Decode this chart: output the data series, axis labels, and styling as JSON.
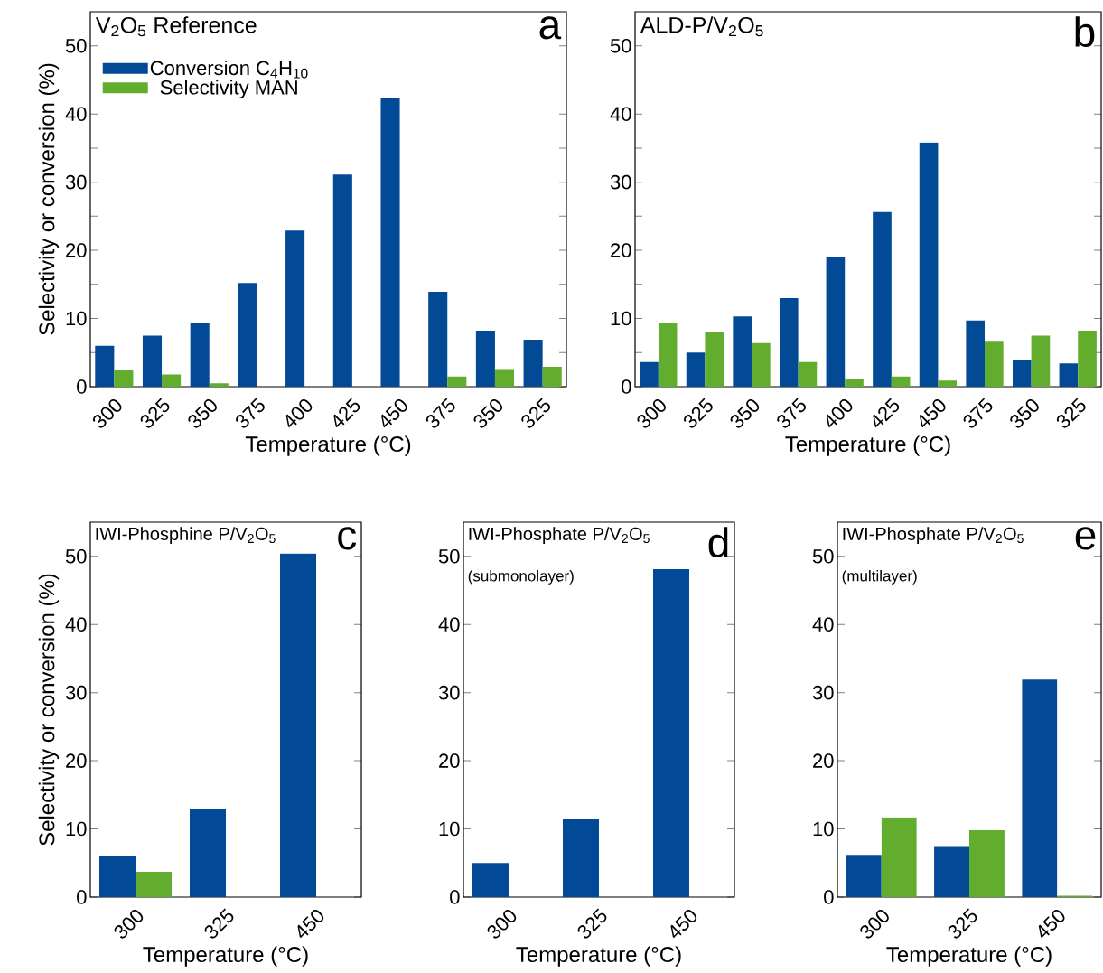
{
  "chart_data": [
    {
      "type": "bar",
      "title": "V$_{2}$O$_{5}$ Reference",
      "annotations": [
        "a"
      ],
      "categories": [
        "300",
        "325",
        "350",
        "375",
        "400",
        "425",
        "450",
        "375",
        "350",
        "325"
      ],
      "series": [
        {
          "name": "Conversion C$_{4}$H$_{10}$",
          "color": "#034a96",
          "values": [
            6.0,
            7.5,
            9.3,
            15.2,
            22.9,
            31.1,
            42.4,
            13.9,
            8.2,
            6.9
          ]
        },
        {
          "name": "Selectivity MAN",
          "color": "#62ad2e",
          "values": [
            2.5,
            1.8,
            0.5,
            null,
            null,
            null,
            null,
            1.5,
            2.6,
            2.9
          ]
        }
      ],
      "ylim": [
        0,
        55
      ],
      "yticks": [
        0,
        {
          "value": 5,
          "label": null
        },
        10,
        {
          "value": 15,
          "label": null
        },
        20,
        {
          "value": 25,
          "label": null
        },
        30,
        {
          "value": 35,
          "label": null
        },
        40,
        {
          "value": 45,
          "label": null
        },
        50
      ],
      "xlabel": "Temperature (°C)",
      "ylabel": "Selectivity or conversion (%)",
      "legend": "top left"
    },
    {
      "type": "bar",
      "title": "ALD-P/V$_{2}$O$_{5}$",
      "annotations": [
        "b"
      ],
      "categories": [
        "300",
        "325",
        "350",
        "375",
        "400",
        "425",
        "450",
        "375",
        "350",
        "325"
      ],
      "series": [
        {
          "color": "#034a96",
          "values": [
            3.6,
            5.0,
            10.3,
            13.0,
            19.1,
            25.6,
            35.8,
            9.7,
            3.9,
            3.4
          ]
        },
        {
          "color": "#62ad2e",
          "values": [
            9.3,
            8.0,
            6.4,
            3.6,
            1.2,
            1.5,
            0.9,
            6.6,
            7.5,
            8.2
          ]
        }
      ],
      "ylim": [
        0,
        55
      ],
      "yticks": [
        0,
        {
          "value": 5,
          "label": null
        },
        10,
        {
          "value": 15,
          "label": null
        },
        20,
        {
          "value": 25,
          "label": null
        },
        30,
        {
          "value": 35,
          "label": null
        },
        40,
        {
          "value": 45,
          "label": null
        },
        50
      ],
      "xlabel": "Temperature (°C)"
    },
    {
      "type": "bar",
      "title": "IWI-Phosphine P/V$_{2}$O$_{5}$",
      "annotations": [
        "c"
      ],
      "categories": [
        "300",
        "325",
        "450"
      ],
      "series": [
        {
          "color": "#034a96",
          "values": [
            6.0,
            13.0,
            50.4
          ]
        },
        {
          "color": "#62ad2e",
          "values": [
            3.7,
            null,
            null
          ]
        }
      ],
      "ylim": [
        0,
        55
      ],
      "yticks": [
        0,
        10,
        20,
        30,
        40,
        50
      ],
      "xlabel": "Temperature (°C)",
      "ylabel": "Selectivity or conversion (%)"
    },
    {
      "type": "bar",
      "title": "IWI-Phosphate P/V$_{2}$O$_{5}$",
      "subtitle": "(submonolayer)",
      "annotations": [
        "d"
      ],
      "categories": [
        "300",
        "325",
        "450"
      ],
      "series": [
        {
          "color": "#034a96",
          "values": [
            5.0,
            11.4,
            48.1
          ]
        },
        {
          "color": "#62ad2e",
          "values": [
            null,
            null,
            null
          ]
        }
      ],
      "ylim": [
        0,
        55
      ],
      "yticks": [
        0,
        10,
        20,
        30,
        40,
        50
      ],
      "xlabel": "Temperature (°C)"
    },
    {
      "type": "bar",
      "title": "IWI-Phosphate P/V$_{2}$O$_{5}$",
      "subtitle": "(multilayer)",
      "annotations": [
        "e"
      ],
      "categories": [
        "300",
        "325",
        "450"
      ],
      "series": [
        {
          "color": "#034a96",
          "values": [
            6.2,
            7.5,
            31.9
          ]
        },
        {
          "color": "#62ad2e",
          "values": [
            11.7,
            9.8,
            0.2
          ]
        }
      ],
      "ylim": [
        0,
        55
      ],
      "yticks": [
        0,
        10,
        20,
        30,
        40,
        50
      ],
      "xlabel": "Temperature (°C)"
    }
  ]
}
